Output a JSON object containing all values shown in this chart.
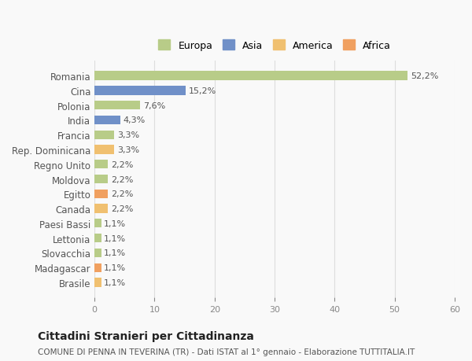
{
  "categories": [
    "Brasile",
    "Madagascar",
    "Slovacchia",
    "Lettonia",
    "Paesi Bassi",
    "Canada",
    "Egitto",
    "Moldova",
    "Regno Unito",
    "Rep. Dominicana",
    "Francia",
    "India",
    "Polonia",
    "Cina",
    "Romania"
  ],
  "values": [
    1.1,
    1.1,
    1.1,
    1.1,
    1.1,
    2.2,
    2.2,
    2.2,
    2.2,
    3.3,
    3.3,
    4.3,
    7.6,
    15.2,
    52.2
  ],
  "labels": [
    "1,1%",
    "1,1%",
    "1,1%",
    "1,1%",
    "1,1%",
    "2,2%",
    "2,2%",
    "2,2%",
    "2,2%",
    "3,3%",
    "3,3%",
    "4,3%",
    "7,6%",
    "15,2%",
    "52,2%"
  ],
  "colors": [
    "#f0c070",
    "#f0a060",
    "#b8cc88",
    "#b8cc88",
    "#b8cc88",
    "#f0c070",
    "#f0a060",
    "#b8cc88",
    "#b8cc88",
    "#f0c070",
    "#b8cc88",
    "#7090c8",
    "#b8cc88",
    "#7090c8",
    "#b8cc88"
  ],
  "legend_labels": [
    "Europa",
    "Asia",
    "America",
    "Africa"
  ],
  "legend_colors": [
    "#b8cc88",
    "#7090c8",
    "#f0c070",
    "#f0a060"
  ],
  "title": "Cittadini Stranieri per Cittadinanza",
  "subtitle": "COMUNE DI PENNA IN TEVERINA (TR) - Dati ISTAT al 1° gennaio - Elaborazione TUTTITALIA.IT",
  "xlim": [
    0,
    60
  ],
  "xticks": [
    0,
    10,
    20,
    30,
    40,
    50,
    60
  ],
  "background_color": "#f9f9f9",
  "grid_color": "#dddddd",
  "bar_height": 0.6
}
